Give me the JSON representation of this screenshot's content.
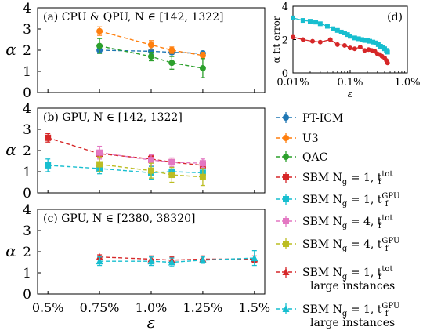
{
  "chart_data": [
    {
      "id": "a",
      "type": "line",
      "panel_label": "(a)",
      "title": "CPU & QPU, N ∈ [142, 1322]",
      "ylabel": "α",
      "xlim": [
        0.45,
        1.55
      ],
      "ylim": [
        0,
        4
      ],
      "xticks": [
        0.5,
        0.75,
        1.0,
        1.25,
        1.5
      ],
      "yticks": [
        0,
        1,
        2,
        3,
        4
      ],
      "series": [
        {
          "name": "PT-ICM",
          "color": "#1f77b4",
          "marker": "circle",
          "x": [
            0.75,
            1.0,
            1.1,
            1.25
          ],
          "y": [
            2.0,
            1.95,
            1.9,
            1.85
          ],
          "err": [
            0.15,
            0.1,
            0.1,
            0.1
          ]
        },
        {
          "name": "U3",
          "color": "#ff7f0e",
          "marker": "circle",
          "x": [
            0.75,
            1.0,
            1.1,
            1.25
          ],
          "y": [
            2.9,
            2.25,
            2.0,
            1.75
          ],
          "err": [
            0.2,
            0.2,
            0.15,
            0.15
          ]
        },
        {
          "name": "QAC",
          "color": "#2ca02c",
          "marker": "circle",
          "x": [
            0.75,
            1.0,
            1.1,
            1.25
          ],
          "y": [
            2.2,
            1.7,
            1.4,
            1.15
          ],
          "err": [
            0.35,
            0.2,
            0.3,
            0.45
          ]
        }
      ]
    },
    {
      "id": "b",
      "type": "line",
      "panel_label": "(b)",
      "title": "GPU, N ∈ [142, 1322]",
      "ylabel": "α",
      "xlim": [
        0.45,
        1.55
      ],
      "ylim": [
        0,
        4
      ],
      "xticks": [
        0.5,
        0.75,
        1.0,
        1.25,
        1.5
      ],
      "yticks": [
        0,
        1,
        2,
        3,
        4
      ],
      "series": [
        {
          "name": "SBM Ng=1, tf tot",
          "color": "#d62728",
          "marker": "square",
          "x": [
            0.5,
            0.75,
            1.0,
            1.1,
            1.25
          ],
          "y": [
            2.6,
            1.85,
            1.6,
            1.45,
            1.3
          ],
          "err": [
            0.2,
            0.15,
            0.15,
            0.1,
            0.15
          ]
        },
        {
          "name": "SBM Ng=1, tf GPU",
          "color": "#17becf",
          "marker": "square",
          "x": [
            0.5,
            0.75,
            1.0,
            1.1,
            1.25
          ],
          "y": [
            1.3,
            1.15,
            0.95,
            1.0,
            0.95
          ],
          "err": [
            0.3,
            0.25,
            0.3,
            0.2,
            0.2
          ]
        },
        {
          "name": "SBM Ng=4, tf tot",
          "color": "#e377c2",
          "marker": "square",
          "x": [
            0.75,
            1.0,
            1.1,
            1.25
          ],
          "y": [
            1.9,
            1.55,
            1.45,
            1.4
          ],
          "err": [
            0.3,
            0.25,
            0.2,
            0.2
          ]
        },
        {
          "name": "SBM Ng=4, tf GPU",
          "color": "#bcbd22",
          "marker": "square",
          "x": [
            0.75,
            1.0,
            1.1,
            1.25
          ],
          "y": [
            1.35,
            1.05,
            0.85,
            0.75
          ],
          "err": [
            0.35,
            0.35,
            0.35,
            0.4
          ]
        }
      ]
    },
    {
      "id": "c",
      "type": "line",
      "panel_label": "(c)",
      "title": "GPU, N ∈ [2380, 38320]",
      "ylabel": "α",
      "xlabel": "ε",
      "xlim": [
        0.45,
        1.55
      ],
      "ylim": [
        0,
        4
      ],
      "xticks": [
        0.5,
        0.75,
        1.0,
        1.25,
        1.5
      ],
      "xticklabels": [
        "0.5%",
        "0.75%",
        "1.0%",
        "1.25%",
        "1.5%"
      ],
      "yticks": [
        0,
        1,
        2,
        3,
        4
      ],
      "series": [
        {
          "name": "SBM Ng=1, tf tot large instances",
          "color": "#d62728",
          "marker": "triangle",
          "x": [
            0.75,
            1.0,
            1.1,
            1.25,
            1.5
          ],
          "y": [
            1.75,
            1.65,
            1.6,
            1.65,
            1.65
          ],
          "err": [
            0.1,
            0.15,
            0.15,
            0.15,
            0.15
          ]
        },
        {
          "name": "SBM Ng=1, tf GPU large instances",
          "color": "#17becf",
          "marker": "triangle",
          "x": [
            0.75,
            1.0,
            1.1,
            1.25,
            1.5
          ],
          "y": [
            1.55,
            1.55,
            1.5,
            1.6,
            1.7
          ],
          "err": [
            0.2,
            0.2,
            0.2,
            0.15,
            0.35
          ]
        }
      ]
    },
    {
      "id": "d",
      "type": "line",
      "panel_label": "(d)",
      "title": "",
      "ylabel": "α fit error",
      "xlabel": "ε",
      "xscale": "log",
      "xlim": [
        0.01,
        1.0
      ],
      "ylim": [
        0,
        4
      ],
      "xticks": [
        0.01,
        0.1,
        1.0
      ],
      "xticklabels": [
        "0.01%",
        "0.1%",
        "1.0%"
      ],
      "yticks": [
        0,
        2,
        4
      ],
      "series": [
        {
          "name": "red fit error",
          "color": "#d62728",
          "marker": "circle",
          "x": [
            0.01,
            0.015,
            0.022,
            0.03,
            0.045,
            0.06,
            0.08,
            0.1,
            0.12,
            0.15,
            0.18,
            0.21,
            0.24,
            0.27,
            0.3,
            0.33,
            0.36,
            0.4,
            0.43,
            0.45
          ],
          "y": [
            2.15,
            2.0,
            1.9,
            1.85,
            2.0,
            1.7,
            1.65,
            1.5,
            1.45,
            1.55,
            1.35,
            1.4,
            1.35,
            1.3,
            1.15,
            1.1,
            1.0,
            0.9,
            0.75,
            0.6
          ]
        },
        {
          "name": "cyan fit error",
          "color": "#17becf",
          "marker": "square",
          "x": [
            0.01,
            0.015,
            0.02,
            0.025,
            0.03,
            0.04,
            0.05,
            0.06,
            0.07,
            0.08,
            0.09,
            0.1,
            0.12,
            0.14,
            0.16,
            0.18,
            0.2,
            0.22,
            0.25,
            0.28,
            0.31,
            0.34,
            0.37,
            0.4,
            0.43,
            0.45
          ],
          "y": [
            3.3,
            3.15,
            3.1,
            3.05,
            2.95,
            2.8,
            2.65,
            2.55,
            2.45,
            2.4,
            2.3,
            2.2,
            2.1,
            2.05,
            2.0,
            1.95,
            1.95,
            1.9,
            1.85,
            1.8,
            1.7,
            1.6,
            1.55,
            1.45,
            1.35,
            1.25
          ]
        }
      ]
    }
  ],
  "legend": [
    {
      "label": "PT-ICM",
      "color": "#1f77b4",
      "marker": "circle"
    },
    {
      "label": "U3",
      "color": "#ff7f0e",
      "marker": "circle"
    },
    {
      "label": "QAC",
      "color": "#2ca02c",
      "marker": "circle"
    },
    {
      "label": "SBM N",
      "sub": "g",
      "mid": " = 1, t",
      "sup": "tot",
      "sub2": "f",
      "color": "#d62728",
      "marker": "square"
    },
    {
      "label": "SBM N",
      "sub": "g",
      "mid": " = 1, t",
      "sup": "GPU",
      "sub2": "f",
      "color": "#17becf",
      "marker": "square"
    },
    {
      "label": "SBM N",
      "sub": "g",
      "mid": " = 4, t",
      "sup": "tot",
      "sub2": "f",
      "color": "#e377c2",
      "marker": "square"
    },
    {
      "label": "SBM N",
      "sub": "g",
      "mid": " = 4, t",
      "sup": "GPU",
      "sub2": "f",
      "color": "#bcbd22",
      "marker": "square"
    },
    {
      "label": "SBM N",
      "sub": "g",
      "mid": " = 1, t",
      "sup": "tot",
      "sub2": "f",
      "extra": "large instances",
      "color": "#d62728",
      "marker": "triangle"
    },
    {
      "label": "SBM N",
      "sub": "g",
      "mid": " = 1, t",
      "sup": "GPU",
      "sub2": "f",
      "extra": "large instances",
      "color": "#17becf",
      "marker": "triangle"
    }
  ]
}
